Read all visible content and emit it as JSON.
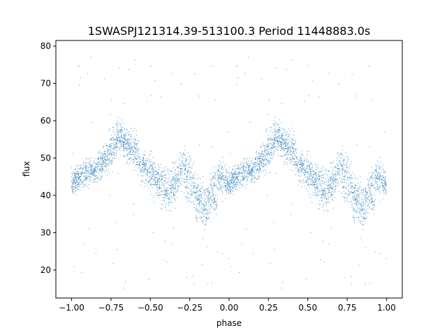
{
  "chart_data": {
    "type": "scatter",
    "title": "1SWASPJ121314.39-513100.3 Period 11448883.0s",
    "xlabel": "phase",
    "ylabel": "flux",
    "xlim": [
      -1.1,
      1.1
    ],
    "ylim": [
      12.5,
      81.5
    ],
    "x_ticks": [
      -1.0,
      -0.75,
      -0.5,
      -0.25,
      0.0,
      0.25,
      0.5,
      0.75,
      1.0
    ],
    "x_tick_labels": [
      "−1.00",
      "−0.75",
      "−0.50",
      "−0.25",
      "0.00",
      "0.25",
      "0.50",
      "0.75",
      "1.00"
    ],
    "y_ticks": [
      20,
      30,
      40,
      50,
      60,
      70,
      80
    ],
    "y_tick_labels": [
      "20",
      "30",
      "40",
      "50",
      "60",
      "70",
      "80"
    ],
    "grid": false,
    "marker_color": "#1f77b4",
    "series": [
      {
        "profile_x": [
          0.0,
          0.05,
          0.1,
          0.15,
          0.2,
          0.25,
          0.3,
          0.35,
          0.4,
          0.45,
          0.5,
          0.55,
          0.6,
          0.65,
          0.7,
          0.75,
          0.8,
          0.85,
          0.9,
          0.95,
          1.0
        ],
        "profile_flux": [
          43,
          45,
          46,
          47,
          49,
          52,
          56,
          54,
          52,
          48,
          46,
          44,
          42,
          43,
          47,
          46,
          40,
          38,
          43,
          45,
          43
        ],
        "profile_spread": [
          3,
          3,
          3,
          3,
          4,
          4,
          4,
          4,
          4,
          4,
          4,
          5,
          5,
          5,
          5,
          5,
          5,
          4,
          4,
          4,
          3
        ],
        "dip_flux": [
          null,
          null,
          null,
          null,
          null,
          null,
          null,
          null,
          null,
          null,
          null,
          null,
          40,
          null,
          null,
          40,
          35,
          35,
          38,
          null,
          null
        ],
        "outlier_range": [
          15,
          78
        ]
      }
    ]
  }
}
